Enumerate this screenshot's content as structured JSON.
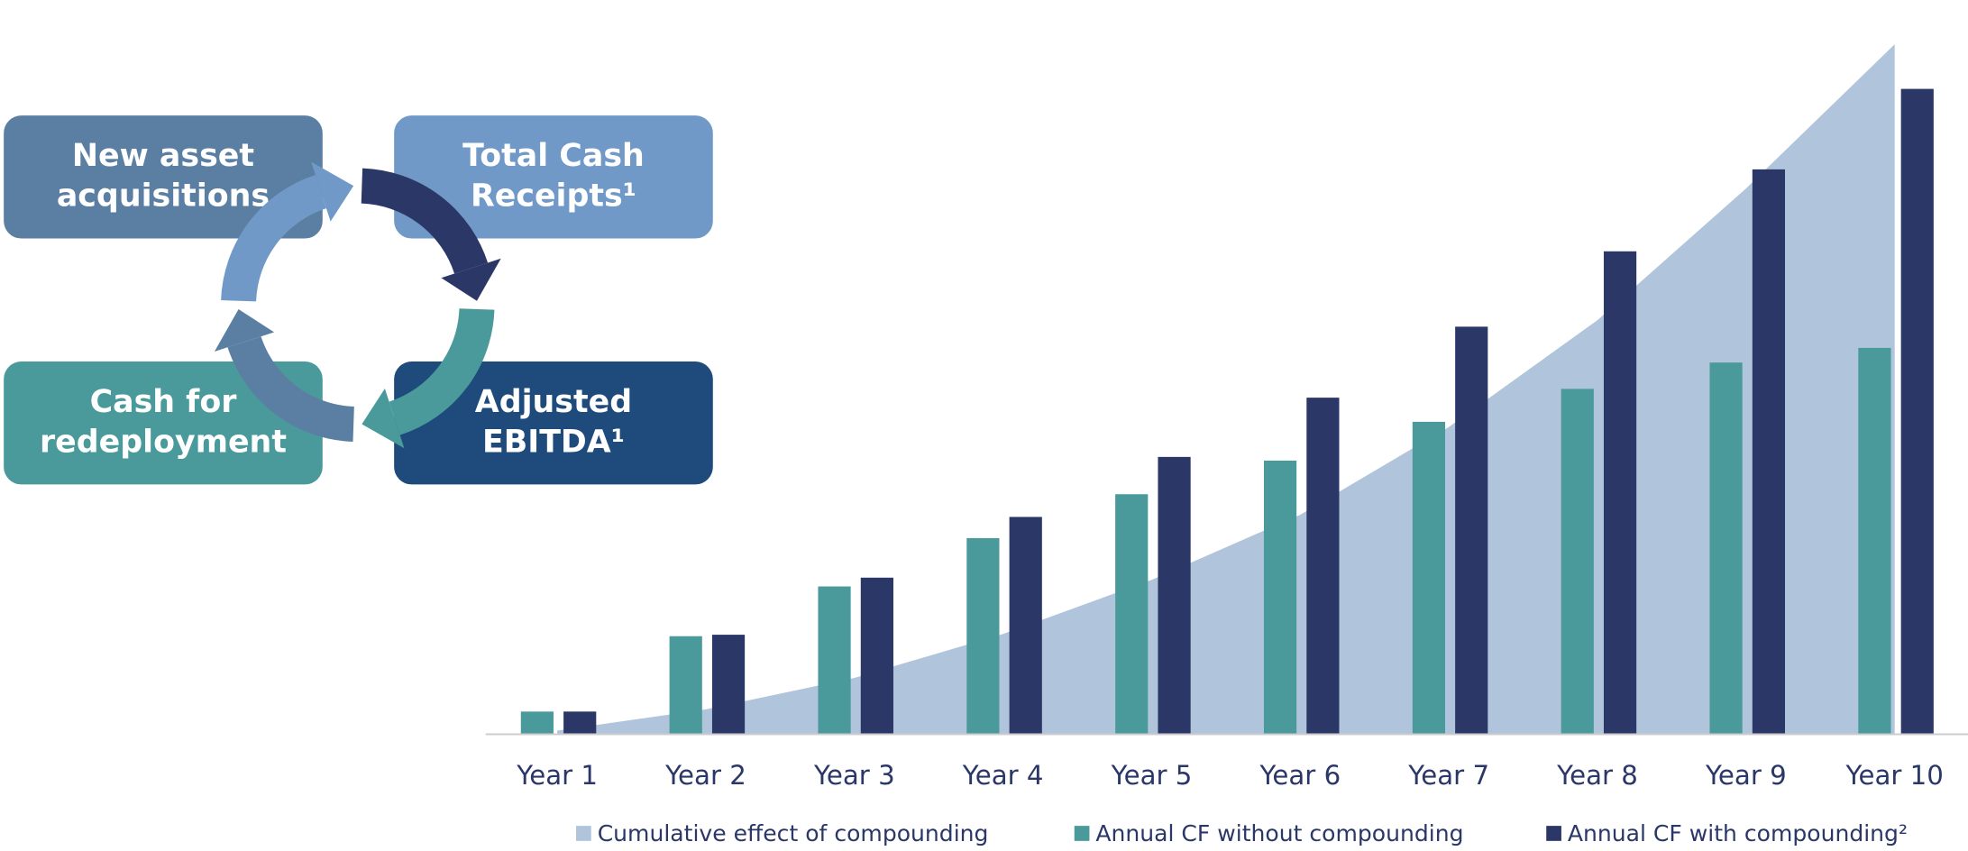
{
  "diagram": {
    "boxes": [
      {
        "lines": [
          "New asset",
          "acquisitions"
        ],
        "color": "#5b7fa3"
      },
      {
        "lines": [
          "Total Cash",
          "Receipts¹"
        ],
        "color": "#7099c8"
      },
      {
        "lines": [
          "Cash for",
          "redeployment"
        ],
        "color": "#4a9a9c"
      },
      {
        "lines": [
          "Adjusted",
          "EBITDA¹"
        ],
        "color": "#1f4a7c"
      }
    ]
  },
  "chart_data": {
    "type": "bar",
    "categories": [
      "Year 1",
      "Year 2",
      "Year 3",
      "Year 4",
      "Year 5",
      "Year 6",
      "Year 7",
      "Year 8",
      "Year 9",
      "Year 10"
    ],
    "ylim": [
      0,
      100
    ],
    "series": [
      {
        "name": "Cumulative effect of  compounding",
        "color": "#b0c4dc",
        "kind": "area",
        "values": [
          0.5,
          3.4,
          7.7,
          13.7,
          21.1,
          30.0,
          42.0,
          56.6,
          74.6,
          94.3
        ]
      },
      {
        "name": "Annual CF without compounding",
        "color": "#4a9a9c",
        "kind": "bar",
        "values": [
          3.1,
          13.4,
          20.2,
          26.8,
          32.8,
          37.4,
          42.7,
          47.2,
          50.8,
          52.8
        ]
      },
      {
        "name": "Annual CF with compounding²",
        "color": "#2b3767",
        "kind": "bar",
        "values": [
          3.1,
          13.6,
          21.4,
          29.7,
          37.9,
          46.0,
          55.7,
          66.0,
          77.2,
          88.2
        ]
      }
    ]
  }
}
